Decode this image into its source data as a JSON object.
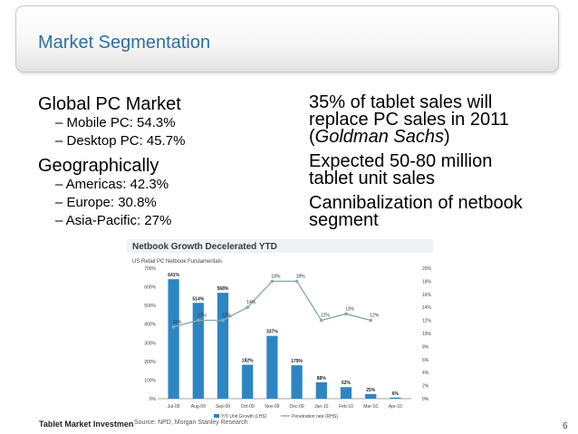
{
  "title": "Market Segmentation",
  "left": {
    "heading1": "Global PC Market",
    "heading1_items": [
      "– Mobile PC: 54.3%",
      "– Desktop PC: 45.7%"
    ],
    "heading2": "Geographically",
    "heading2_items": [
      "– Americas: 42.3%",
      "– Europe: 30.8%",
      "– Asia-Pacific: 27%"
    ]
  },
  "right": {
    "item1_line1": "35% of tablet sales will",
    "item1_line2": "replace PC sales in 2011",
    "item1_line3_open": "(",
    "item1_line3_italic": "Goldman Sachs",
    "item1_line3_close": ")",
    "item2_line1": "Expected 50-80 million",
    "item2_line2": "tablet unit sales",
    "item3_line1": "Cannibalization of netbook",
    "item3_line2": "segment"
  },
  "footer": {
    "left_text": "Tablet Market Investmen",
    "page_number": "6"
  },
  "colors": {
    "title": "#2d6fa3",
    "bar": "#2e85c4",
    "line": "#86aab0"
  },
  "chart_data": {
    "type": "bar",
    "title": "Netbook Growth Decelerated YTD",
    "subtitle": "US Retail PC Netbook Fundamentals",
    "categories": [
      "Jul-09",
      "Aug-09",
      "Sep-09",
      "Oct-09",
      "Nov-09",
      "Dec-09",
      "Jan-10",
      "Feb-10",
      "Mar-10",
      "Apr-10"
    ],
    "series": [
      {
        "name": "Y/Y Unit Growth (LHS)",
        "type": "bar",
        "axis": "left",
        "values": [
          641,
          514,
          568,
          182,
          337,
          179,
          88,
          62,
          25,
          6
        ],
        "labels": [
          "641%",
          "514%",
          "568%",
          "182%",
          "337%",
          "179%",
          "88%",
          "62%",
          "25%",
          "6%"
        ]
      },
      {
        "name": "Penetration rate (RHS)",
        "type": "line",
        "axis": "right",
        "values": [
          11,
          12,
          12,
          14,
          18,
          18,
          12,
          13,
          12,
          null
        ],
        "labels": [
          "11%",
          "12%",
          "12%",
          "14%",
          "18%",
          "18%",
          "12%",
          "13%",
          "12%",
          ""
        ]
      }
    ],
    "ylim_left": [
      0,
      700
    ],
    "yticks_left": [
      "0%",
      "100%",
      "200%",
      "300%",
      "400%",
      "500%",
      "600%",
      "700%"
    ],
    "ylim_right": [
      0,
      20
    ],
    "yticks_right": [
      "0%",
      "2%",
      "4%",
      "6%",
      "8%",
      "10%",
      "12%",
      "14%",
      "16%",
      "18%",
      "20%"
    ],
    "source": "Source: NPD, Morgan Stanley Research"
  }
}
